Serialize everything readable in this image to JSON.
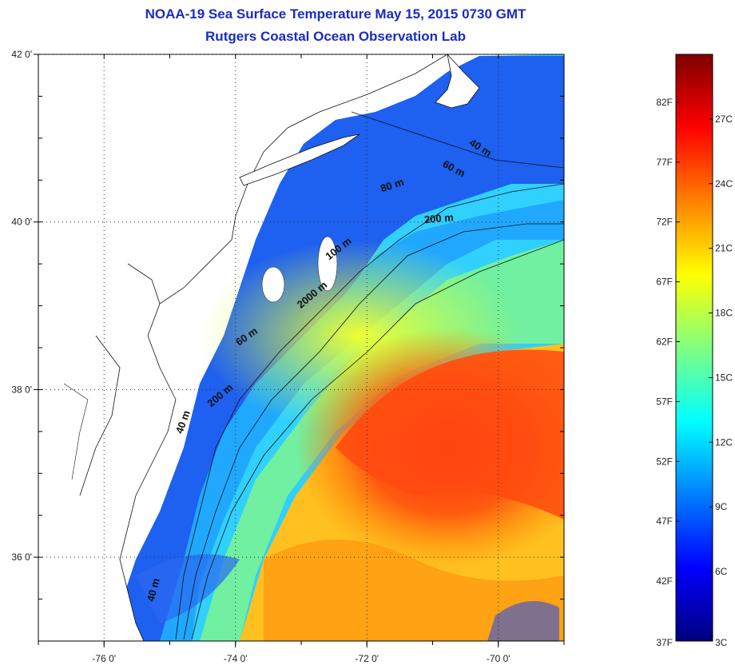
{
  "title": {
    "line1": "NOAA-19 Sea Surface Temperature May 15, 2015 0730 GMT",
    "line2": "Rutgers Coastal Ocean Observation Lab"
  },
  "map": {
    "lon_range": [
      -77,
      -69
    ],
    "lat_range": [
      35,
      42
    ],
    "lon_ticks": [
      {
        "value": -76,
        "label": "-76 0'"
      },
      {
        "value": -74,
        "label": "-74 0'"
      },
      {
        "value": -72,
        "label": "-72 0'"
      },
      {
        "value": -70,
        "label": "-70 0'"
      }
    ],
    "lat_ticks": [
      {
        "value": 42,
        "label": "42 0'"
      },
      {
        "value": 40,
        "label": "40 0'"
      },
      {
        "value": 38,
        "label": "38 0'"
      },
      {
        "value": 36,
        "label": "36 0'"
      }
    ],
    "depth_labels": [
      {
        "text": "40 m",
        "lon": -70.3,
        "lat": 40.85
      },
      {
        "text": "60 m",
        "lon": -70.7,
        "lat": 40.6
      },
      {
        "text": "80 m",
        "lon": -71.6,
        "lat": 40.4
      },
      {
        "text": "200 m",
        "lon": -70.9,
        "lat": 40.0
      },
      {
        "text": "100 m",
        "lon": -72.4,
        "lat": 39.65
      },
      {
        "text": "2000 m",
        "lon": -72.8,
        "lat": 39.1
      },
      {
        "text": "60 m",
        "lon": -73.8,
        "lat": 38.6
      },
      {
        "text": "200 m",
        "lon": -74.2,
        "lat": 37.9
      },
      {
        "text": "40 m",
        "lon": -74.75,
        "lat": 37.6
      },
      {
        "text": "40 m",
        "lon": -75.2,
        "lat": 35.6
      }
    ]
  },
  "colorbar": {
    "f_labels": [
      "82F",
      "77F",
      "72F",
      "67F",
      "62F",
      "57F",
      "52F",
      "47F",
      "42F",
      "37F"
    ],
    "c_labels": [
      "27C",
      "24C",
      "21C",
      "18C",
      "15C",
      "12C",
      "9C",
      "6C",
      "3C"
    ],
    "colors": [
      "#00007f",
      "#0000ff",
      "#0080ff",
      "#00ffff",
      "#80ff80",
      "#ffff00",
      "#ff8000",
      "#ff0000",
      "#7f0000"
    ]
  }
}
